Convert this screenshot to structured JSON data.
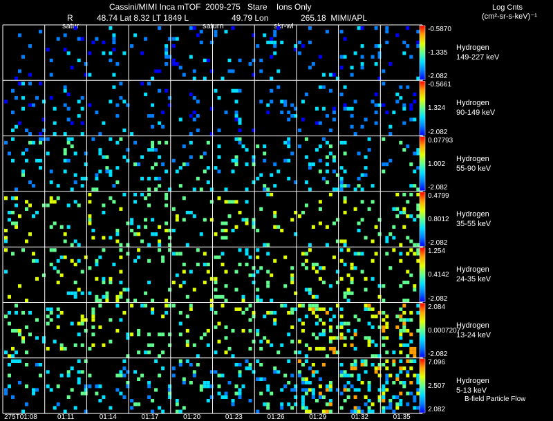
{
  "header": {
    "title": "Cassini/MIMI Inca mTOF  2009-275   Stare    Ions Only",
    "ephem_r_label": "R",
    "ephem_values": "48.74 Lat 8.32 LT 1849 L",
    "lon_label": "49.79 Lon",
    "lon_value": "265.18  MIMI/APL",
    "units_title": "Log Cnts",
    "units": "(cm²-sr-s-keV)⁻¹"
  },
  "overlay_labels": {
    "label_a": "satur",
    "label_b": "saturn",
    "label_c": "skr-wl"
  },
  "footer": {
    "bfield_label": "B-field Particle Flow"
  },
  "colors": {
    "background": "#000000",
    "grid": "#ffffff",
    "colormap": [
      "#0000ff",
      "#0080ff",
      "#00e0ff",
      "#60ff90",
      "#e0ff00",
      "#ffa000",
      "#ff0000"
    ]
  },
  "chart_data": {
    "type": "heatmap",
    "time_labels": [
      "275T01:08",
      "01:11",
      "01:14",
      "01:17",
      "01:20",
      "01:23",
      "01:26",
      "01:29",
      "01:32",
      "01:35"
    ],
    "rows": [
      {
        "species": "Hydrogen",
        "energy": "149-227 keV",
        "cb_max": "-0.5870",
        "cb_mid": "-1.335",
        "cb_min": "-2.082",
        "density": [
          0.1,
          0.12,
          0.14,
          0.14,
          0.16,
          0.14,
          0.14,
          0.16,
          0.16,
          0.18
        ]
      },
      {
        "species": "Hydrogen",
        "energy": "90-149 keV",
        "cb_max": "-0.5661",
        "cb_mid": "1.324",
        "cb_min": "-2.082",
        "density": [
          0.2,
          0.16,
          0.18,
          0.14,
          0.14,
          0.16,
          0.16,
          0.18,
          0.2,
          0.2
        ]
      },
      {
        "species": "Hydrogen",
        "energy": "55-90 keV",
        "cb_max": "0.07793",
        "cb_mid": "1.002",
        "cb_min": "-2.082",
        "density": [
          0.16,
          0.2,
          0.2,
          0.16,
          0.18,
          0.18,
          0.2,
          0.22,
          0.22,
          0.22
        ]
      },
      {
        "species": "Hydrogen",
        "energy": "35-55 keV",
        "cb_max": "0.4799",
        "cb_mid": "0.8012",
        "cb_min": "-2.082",
        "density": [
          0.16,
          0.2,
          0.2,
          0.18,
          0.18,
          0.2,
          0.2,
          0.22,
          0.22,
          0.24
        ]
      },
      {
        "species": "Hydrogen",
        "energy": "24-35 keV",
        "cb_max": "1.254",
        "cb_mid": "0.4142",
        "cb_min": "-2.082",
        "density": [
          0.18,
          0.2,
          0.22,
          0.2,
          0.2,
          0.2,
          0.22,
          0.24,
          0.26,
          0.3
        ]
      },
      {
        "species": "Hydrogen",
        "energy": "13-24 keV",
        "cb_max": "2.084",
        "cb_mid": "0.0007207",
        "cb_min": "-2.082",
        "density": [
          0.22,
          0.24,
          0.24,
          0.22,
          0.2,
          0.22,
          0.26,
          0.38,
          0.42,
          0.5
        ]
      },
      {
        "species": "Hydrogen",
        "energy": "5-13 keV",
        "cb_max": "7.096",
        "cb_mid": "2.507",
        "cb_min": "2.082",
        "density": [
          0.22,
          0.24,
          0.22,
          0.2,
          0.2,
          0.22,
          0.3,
          0.4,
          0.5,
          0.55
        ]
      }
    ]
  }
}
